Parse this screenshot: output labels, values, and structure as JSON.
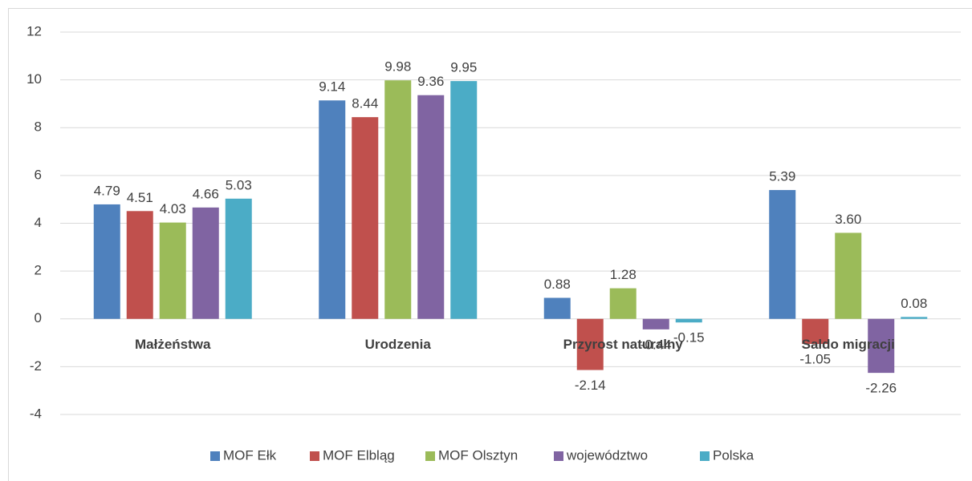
{
  "chart_data": {
    "type": "bar",
    "categories": [
      "Małżeństwa",
      "Urodzenia",
      "Przyrost naturalny",
      "Saldo migracji"
    ],
    "series": [
      {
        "name": "MOF Ełk",
        "color": "#4f81bd",
        "values": [
          4.79,
          9.14,
          0.88,
          5.39
        ],
        "value_labels": [
          "4.79",
          "9.14",
          "0.88",
          "5.39"
        ]
      },
      {
        "name": "MOF Elbląg",
        "color": "#c0504d",
        "values": [
          4.51,
          8.44,
          -2.14,
          -1.05
        ],
        "value_labels": [
          "4.51",
          "8.44",
          "-2.14",
          "-1.05"
        ]
      },
      {
        "name": "MOF Olsztyn",
        "color": "#9bbb59",
        "values": [
          4.03,
          9.98,
          1.28,
          3.6
        ],
        "value_labels": [
          "4.03",
          "9.98",
          "1.28",
          "3.60"
        ]
      },
      {
        "name": "województwo",
        "color": "#8064a2",
        "values": [
          4.66,
          9.36,
          -0.44,
          -2.26
        ],
        "value_labels": [
          "4.66",
          "9.36",
          "-0.44",
          "-2.26"
        ]
      },
      {
        "name": "Polska",
        "color": "#4bacc6",
        "values": [
          5.03,
          9.95,
          -0.15,
          0.08
        ],
        "value_labels": [
          "5.03",
          "9.95",
          "-0.15",
          "0.08"
        ]
      }
    ],
    "ylim": [
      -4,
      12
    ],
    "yticks": [
      -4,
      -2,
      0,
      2,
      4,
      6,
      8,
      10,
      12
    ],
    "grid": true,
    "legend": "bottom"
  }
}
